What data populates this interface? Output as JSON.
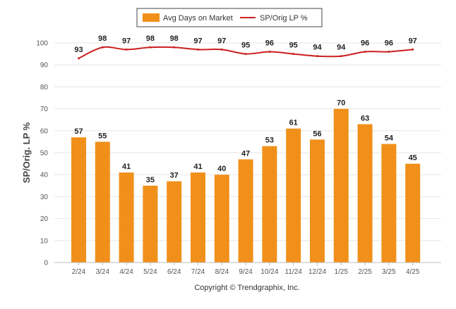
{
  "chart_data": {
    "type": "bar",
    "categories": [
      "2/24",
      "3/24",
      "4/24",
      "5/24",
      "6/24",
      "7/24",
      "8/24",
      "9/24",
      "10/24",
      "11/24",
      "12/24",
      "1/25",
      "2/25",
      "3/25",
      "4/25"
    ],
    "series": [
      {
        "name": "Avg Days on Market",
        "type": "bar",
        "color": "#f0901a",
        "values": [
          57,
          55,
          41,
          35,
          37,
          41,
          40,
          47,
          53,
          61,
          56,
          70,
          63,
          54,
          45
        ]
      },
      {
        "name": "SP/Orig LP %",
        "type": "line",
        "color": "#cc1f1f",
        "values": [
          93,
          98,
          97,
          98,
          98,
          97,
          97,
          95,
          96,
          95,
          94,
          94,
          96,
          96,
          97
        ]
      }
    ],
    "ylabel": "SP/Orig. LP %",
    "ylim": [
      0,
      100
    ],
    "yticks": [
      0,
      10,
      20,
      30,
      40,
      50,
      60,
      70,
      80,
      90,
      100
    ],
    "grid": true,
    "legend_position": "top-center"
  },
  "footer": {
    "copyright": "Copyright © Trendgraphix, Inc."
  }
}
